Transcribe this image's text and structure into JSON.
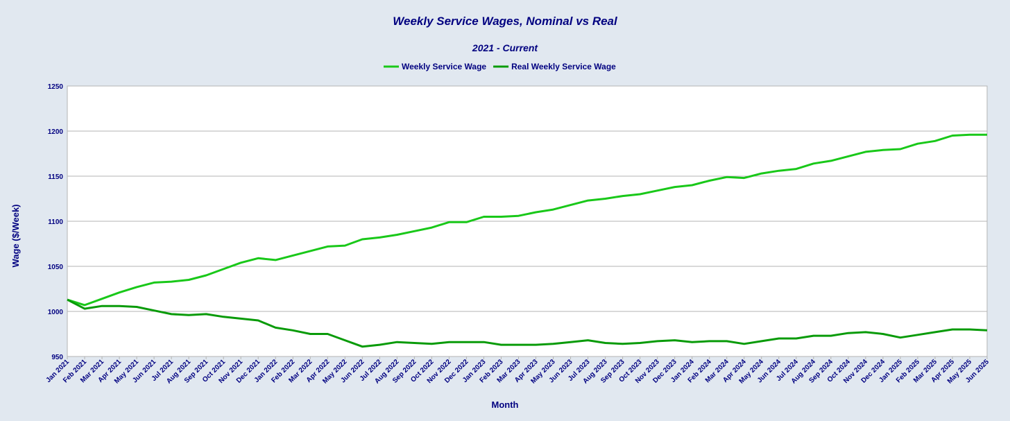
{
  "chart_data": {
    "type": "line",
    "title": "Weekly Service Wages, Nominal vs Real",
    "subtitle": "2021 - Current",
    "xlabel": "Month",
    "ylabel": "Wage ($/Week)",
    "ylim": [
      950,
      1250
    ],
    "yticks": [
      950,
      1000,
      1050,
      1100,
      1150,
      1200,
      1250
    ],
    "grid": true,
    "legend_position": "top-center",
    "categories": [
      "Jan 2021",
      "Feb 2021",
      "Mar 2021",
      "Apr 2021",
      "May 2021",
      "Jun 2021",
      "Jul 2021",
      "Aug 2021",
      "Sep 2021",
      "Oct 2021",
      "Nov 2021",
      "Dec 2021",
      "Jan 2022",
      "Feb 2022",
      "Mar 2022",
      "Apr 2022",
      "May 2022",
      "Jun 2022",
      "Jul 2022",
      "Aug 2022",
      "Sep 2022",
      "Oct 2022",
      "Nov 2022",
      "Dec 2022",
      "Jan 2023",
      "Feb 2023",
      "Mar 2023",
      "Apr 2023",
      "May 2023",
      "Jun 2023",
      "Jul 2023",
      "Aug 2023",
      "Sep 2023",
      "Oct 2023",
      "Nov 2023",
      "Dec 2023",
      "Jan 2024",
      "Feb 2024",
      "Mar 2024",
      "Apr 2024",
      "May 2024",
      "Jun 2024",
      "Jul 2024",
      "Aug 2024",
      "Sep 2024",
      "Oct 2024",
      "Nov 2024",
      "Dec 2024",
      "Jan 2025",
      "Feb 2025",
      "Mar 2025",
      "Apr 2025",
      "May 2025",
      "Jun 2025"
    ],
    "series": [
      {
        "name": "Weekly Service Wage",
        "color": "#19c819",
        "values": [
          1013,
          1007,
          1014,
          1021,
          1027,
          1032,
          1033,
          1035,
          1040,
          1047,
          1054,
          1059,
          1057,
          1062,
          1067,
          1072,
          1073,
          1080,
          1082,
          1085,
          1089,
          1093,
          1099,
          1099,
          1105,
          1105,
          1106,
          1110,
          1113,
          1118,
          1123,
          1125,
          1128,
          1130,
          1134,
          1138,
          1140,
          1145,
          1149,
          1148,
          1153,
          1156,
          1158,
          1164,
          1167,
          1172,
          1177,
          1179,
          1180,
          1186,
          1189,
          1195,
          1196,
          1196
        ]
      },
      {
        "name": "Real Weekly Service  Wage",
        "color": "#099b09",
        "values": [
          1013,
          1003,
          1006,
          1006,
          1005,
          1001,
          997,
          996,
          997,
          994,
          992,
          990,
          982,
          979,
          975,
          975,
          968,
          961,
          963,
          966,
          965,
          964,
          966,
          966,
          966,
          963,
          963,
          963,
          964,
          966,
          968,
          965,
          964,
          965,
          967,
          968,
          966,
          967,
          967,
          964,
          967,
          970,
          970,
          973,
          973,
          976,
          977,
          975,
          971,
          974,
          977,
          980,
          980,
          979
        ]
      }
    ]
  }
}
